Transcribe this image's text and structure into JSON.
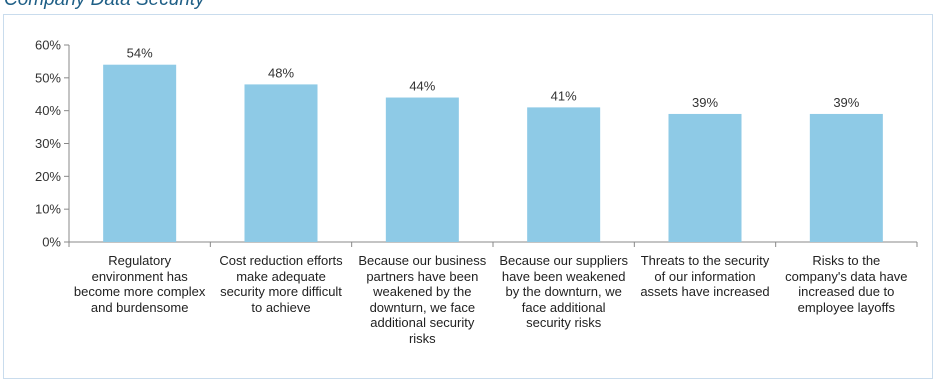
{
  "header_partial_text": "Company Data Security",
  "chart_data": {
    "type": "bar",
    "categories": [
      "Regulatory environment has become more complex and burdensome",
      "Cost reduction efforts make adequate security more difficult to achieve",
      "Because our business partners have been weakened by the downturn, we face additional security risks",
      "Because our suppliers have been weakened by the downturn, we face additional security risks",
      "Threats to the security of our information assets have increased",
      "Risks to the company's data have increased due to employee layoffs"
    ],
    "values": [
      54,
      48,
      44,
      41,
      39,
      39
    ],
    "value_labels": [
      "54%",
      "48%",
      "44%",
      "41%",
      "39%",
      "39%"
    ],
    "yticks": [
      "0%",
      "10%",
      "20%",
      "30%",
      "40%",
      "50%",
      "60%"
    ],
    "ylim": [
      0,
      60
    ],
    "bar_color": "#8ecae6",
    "axis_color": "#888888",
    "grid": false,
    "legend": "none"
  }
}
